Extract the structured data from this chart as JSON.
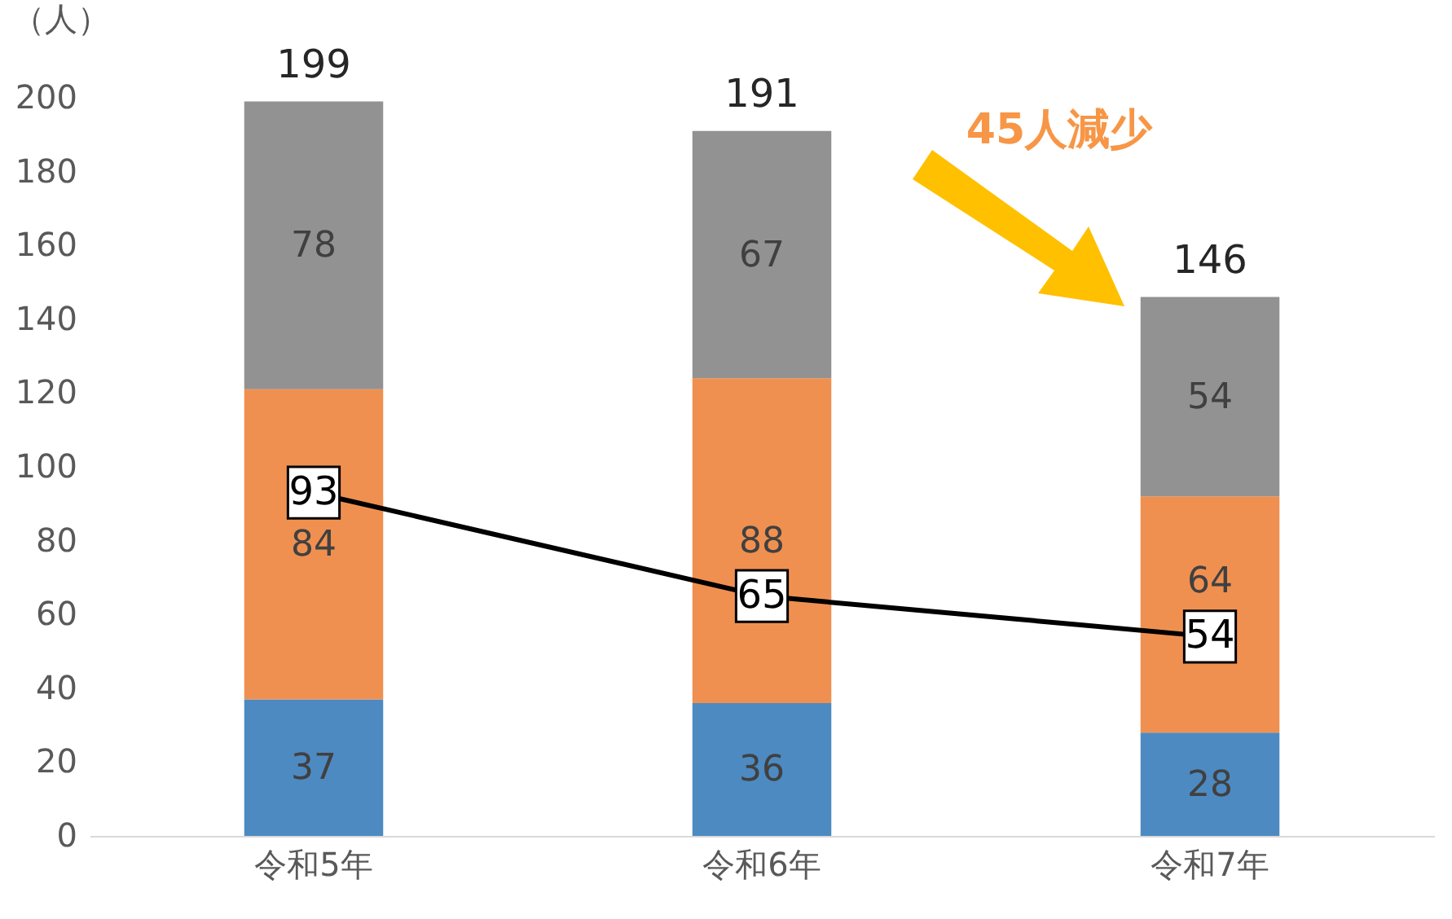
{
  "chart_data": {
    "type": "bar",
    "stacked": true,
    "ylabel": "（人）",
    "categories": [
      "令和5年",
      "令和6年",
      "令和7年"
    ],
    "series": [
      {
        "color": "#2e75b6",
        "values": [
          37,
          36,
          28
        ]
      },
      {
        "color": "#ed7d31",
        "values": [
          84,
          88,
          64
        ]
      },
      {
        "color": "#7f7f7f",
        "values": [
          78,
          67,
          54
        ]
      },
      {
        "type": "line",
        "color": "#000000",
        "marker": "square",
        "values": [
          93,
          65,
          54
        ]
      }
    ],
    "totals": [
      "199",
      "191",
      "146"
    ],
    "data_labels": true,
    "ylim": [
      0,
      200
    ],
    "yticks": [
      0,
      20,
      40,
      60,
      80,
      100,
      120,
      140,
      160,
      180,
      200
    ],
    "grid": false,
    "line_style": "solid",
    "annotations": [
      "45人減少"
    ]
  }
}
